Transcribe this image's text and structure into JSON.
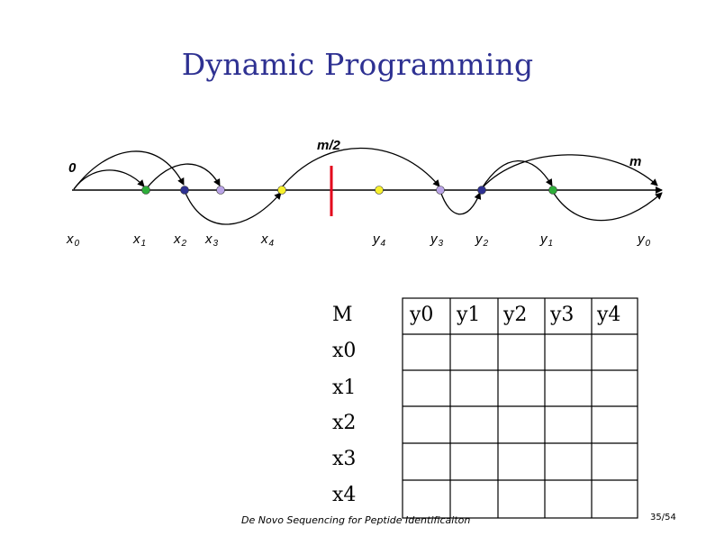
{
  "title": "Dynamic Programming",
  "labels": {
    "zero": "0",
    "m": "m",
    "mid": "m/2"
  },
  "x_labels": [
    {
      "name": "x",
      "sub": "0"
    },
    {
      "name": "x",
      "sub": "1"
    },
    {
      "name": "x",
      "sub": "2"
    },
    {
      "name": "x",
      "sub": "3"
    },
    {
      "name": "x",
      "sub": "4"
    }
  ],
  "y_labels": [
    {
      "name": "y",
      "sub": "4"
    },
    {
      "name": "y",
      "sub": "3"
    },
    {
      "name": "y",
      "sub": "2"
    },
    {
      "name": "y",
      "sub": "1"
    },
    {
      "name": "y",
      "sub": "0"
    }
  ],
  "table": {
    "corner": "M",
    "columns": [
      "y0",
      "y1",
      "y2",
      "y3",
      "y4"
    ],
    "rows": [
      "x0",
      "x1",
      "x2",
      "x3",
      "x4"
    ]
  },
  "colors": {
    "green": "#2eae3a",
    "navy": "#2e3192",
    "lavender": "#b9a3e6",
    "yellow": "#f7f02b",
    "red": "#e3001b",
    "title": "#2e3192"
  },
  "footer": "De Novo Sequencing for Peptide Identificaiton",
  "page_number": "35/54"
}
